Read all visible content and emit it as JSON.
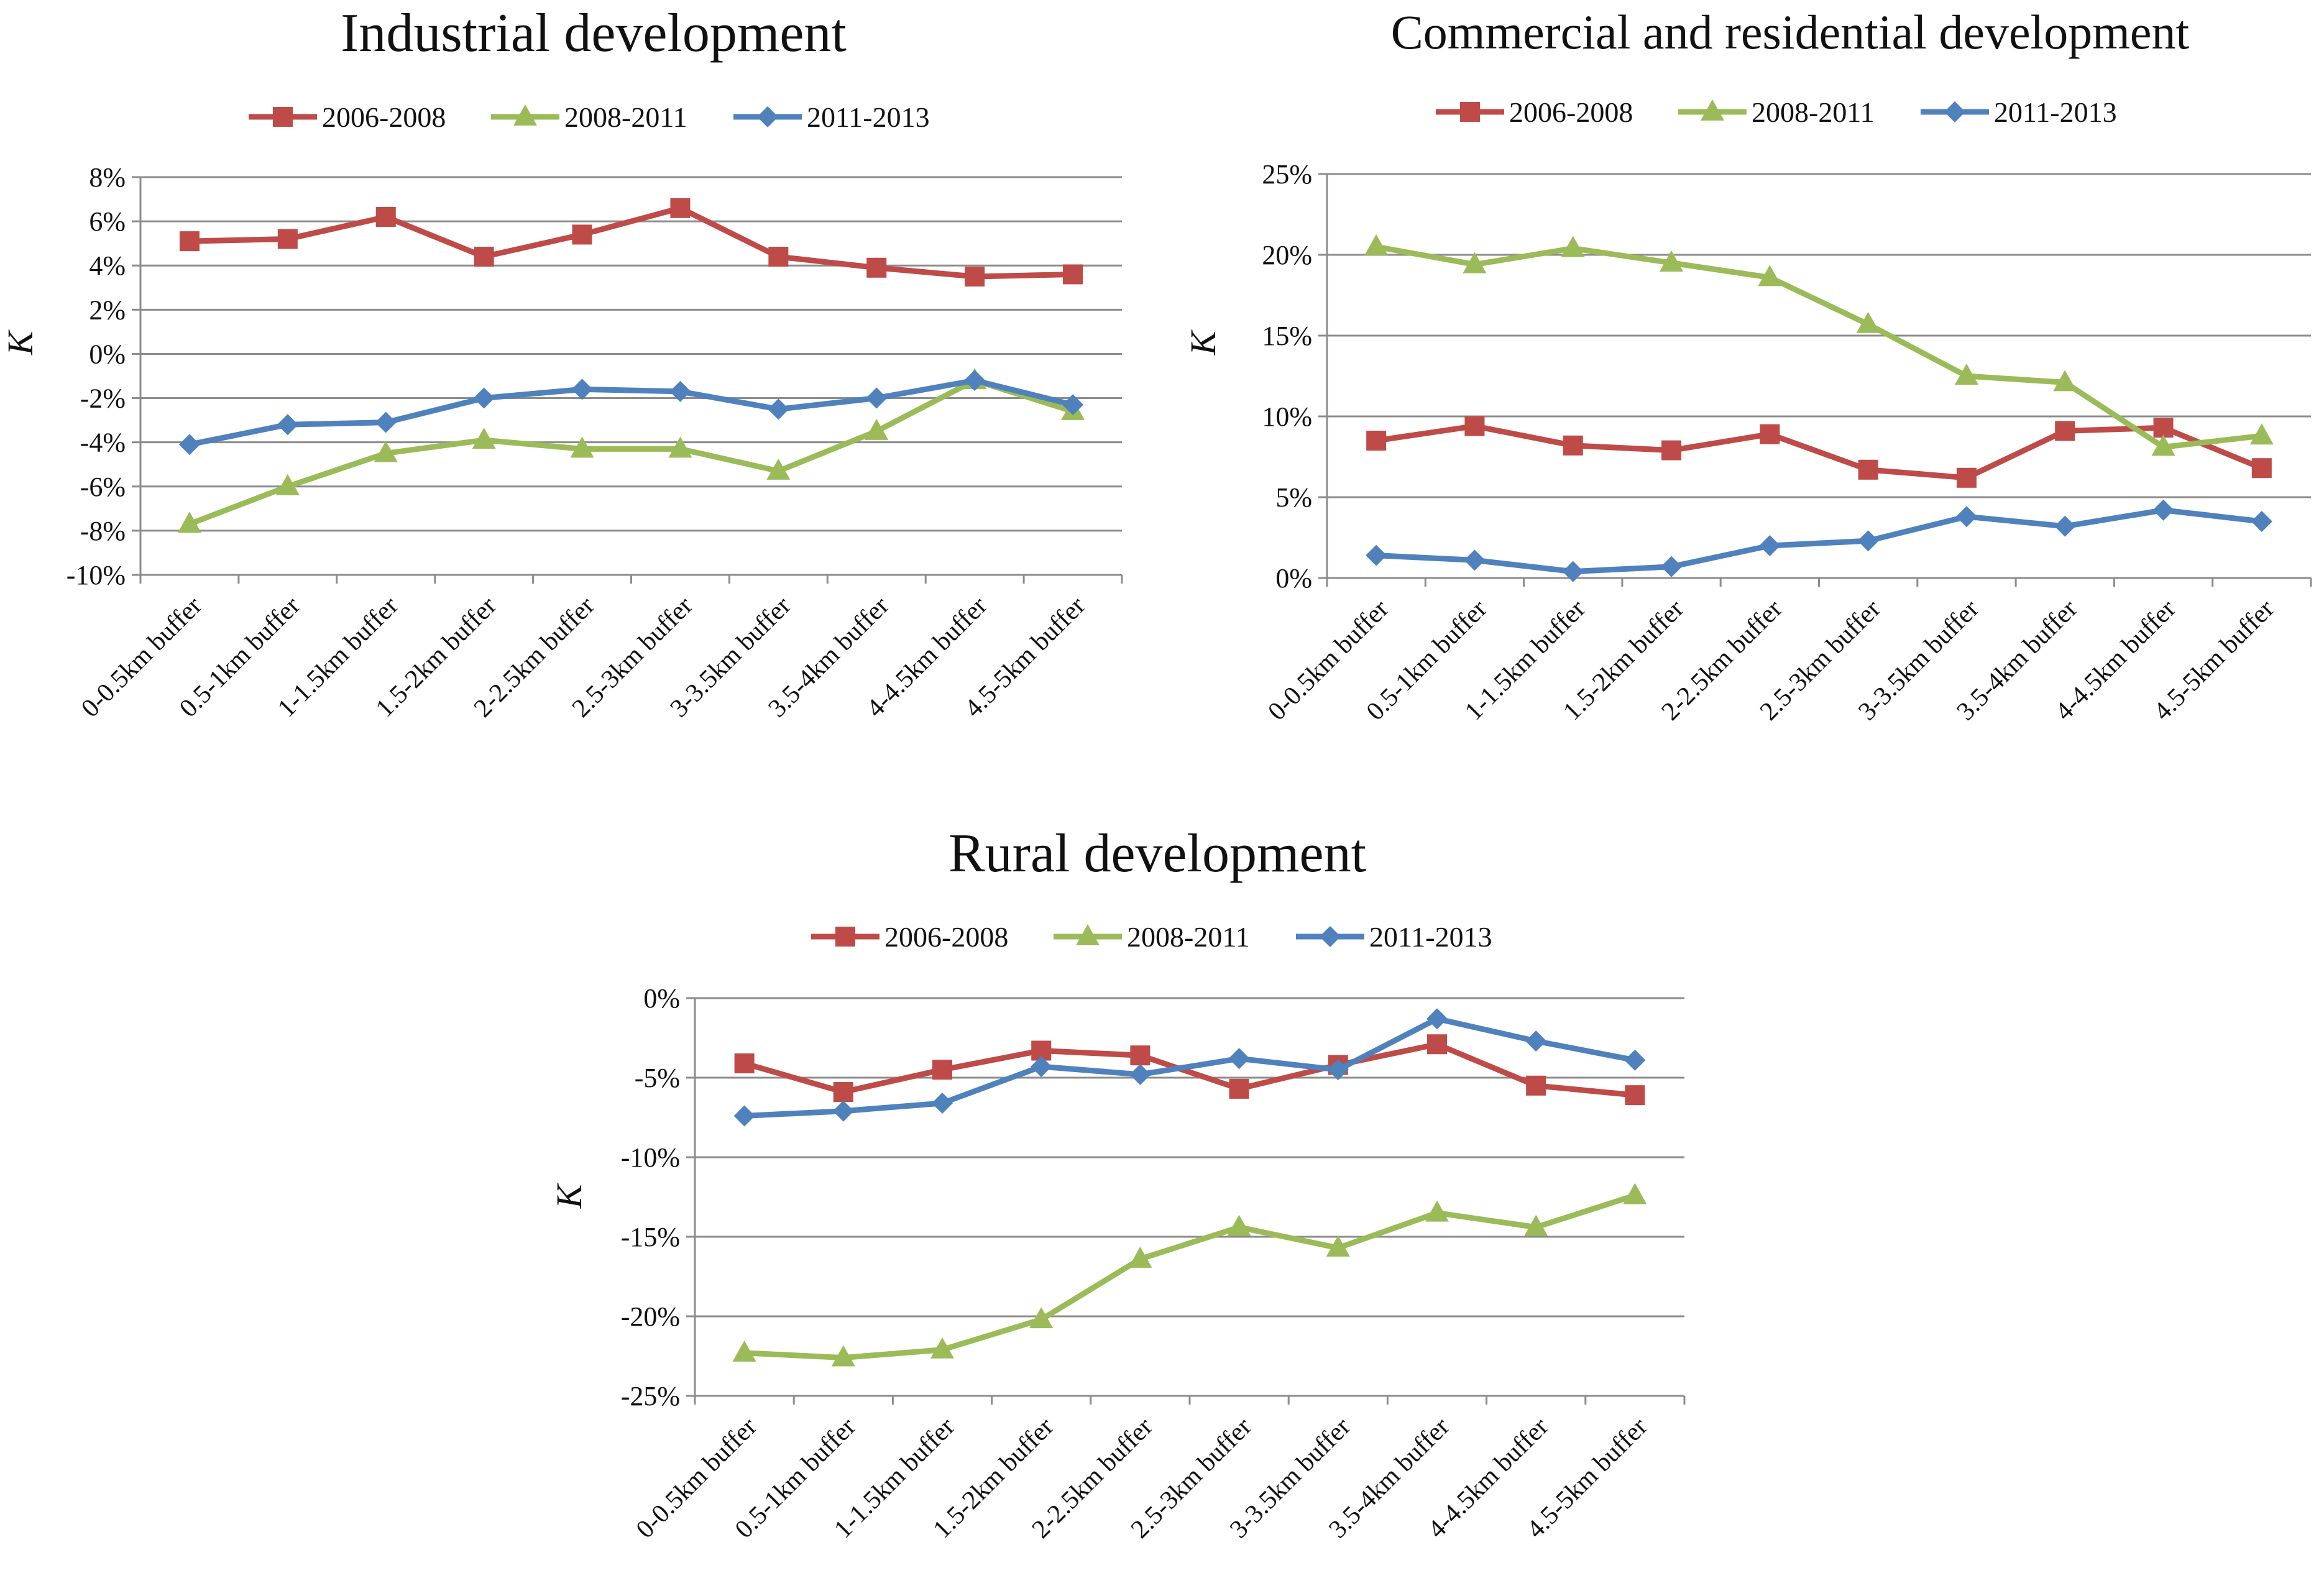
{
  "colors": {
    "s2006": "#BE4B48",
    "s2008": "#9BBB59",
    "s2011": "#4F81BD",
    "grid": "#8C8C8C",
    "axis": "#8C8C8C",
    "text": "#111111"
  },
  "chart_data": [
    {
      "id": "industrial",
      "type": "line",
      "title": "Industrial development",
      "xlabel": "",
      "ylabel": "K",
      "ylim": [
        -10,
        8
      ],
      "ystep": 2,
      "y_ticks": [
        "8%",
        "6%",
        "4%",
        "2%",
        "0%",
        "-2%",
        "-4%",
        "-6%",
        "-8%",
        "-10%"
      ],
      "grid": true,
      "legend": "top",
      "categories": [
        "0-0.5km buffer",
        "0.5-1km buffer",
        "1-1.5km buffer",
        "1.5-2km buffer",
        "2-2.5km buffer",
        "2.5-3km buffer",
        "3-3.5km buffer",
        "3.5-4km buffer",
        "4-4.5km buffer",
        "4.5-5km buffer"
      ],
      "series": [
        {
          "name": "2006-2008",
          "marker": "square",
          "color_key": "s2006",
          "values": [
            5.1,
            5.2,
            6.2,
            4.4,
            5.4,
            6.6,
            4.4,
            3.9,
            3.5,
            3.6
          ]
        },
        {
          "name": "2008-2011",
          "marker": "triangle",
          "color_key": "s2008",
          "values": [
            -7.7,
            -6.0,
            -4.5,
            -3.9,
            -4.3,
            -4.3,
            -5.3,
            -3.5,
            -1.2,
            -2.6
          ]
        },
        {
          "name": "2011-2013",
          "marker": "diamond",
          "color_key": "s2011",
          "values": [
            -4.1,
            -3.2,
            -3.1,
            -2.0,
            -1.6,
            -1.7,
            -2.5,
            -2.0,
            -1.2,
            -2.3
          ]
        }
      ]
    },
    {
      "id": "commercial",
      "type": "line",
      "title": "Commercial and residential development",
      "xlabel": "",
      "ylabel": "K",
      "ylim": [
        0,
        25
      ],
      "ystep": 5,
      "y_ticks": [
        "25%",
        "20%",
        "15%",
        "10%",
        "5%",
        "0%"
      ],
      "grid": true,
      "legend": "top",
      "categories": [
        "0-0.5km buffer",
        "0.5-1km buffer",
        "1-1.5km buffer",
        "1.5-2km buffer",
        "2-2.5km buffer",
        "2.5-3km buffer",
        "3-3.5km buffer",
        "3.5-4km buffer",
        "4-4.5km buffer",
        "4.5-5km buffer"
      ],
      "series": [
        {
          "name": "2006-2008",
          "marker": "square",
          "color_key": "s2006",
          "values": [
            8.5,
            9.4,
            8.2,
            7.9,
            8.9,
            6.7,
            6.2,
            9.1,
            9.3,
            6.8
          ]
        },
        {
          "name": "2008-2011",
          "marker": "triangle",
          "color_key": "s2008",
          "values": [
            20.5,
            19.4,
            20.4,
            19.5,
            18.6,
            15.7,
            12.5,
            12.1,
            8.1,
            8.8
          ]
        },
        {
          "name": "2011-2013",
          "marker": "diamond",
          "color_key": "s2011",
          "values": [
            1.4,
            1.1,
            0.4,
            0.7,
            2.0,
            2.3,
            3.8,
            3.2,
            4.2,
            3.5
          ]
        }
      ]
    },
    {
      "id": "rural",
      "type": "line",
      "title": "Rural development",
      "xlabel": "",
      "ylabel": "K",
      "ylim": [
        -25,
        0
      ],
      "ystep": 5,
      "y_ticks": [
        "0%",
        "-5%",
        "-10%",
        "-15%",
        "-20%",
        "-25%"
      ],
      "grid": true,
      "legend": "top",
      "categories": [
        "0-0.5km buffer",
        "0.5-1km buffer",
        "1-1.5km buffer",
        "1.5-2km buffer",
        "2-2.5km buffer",
        "2.5-3km buffer",
        "3-3.5km buffer",
        "3.5-4km buffer",
        "4-4.5km buffer",
        "4.5-5km buffer"
      ],
      "series": [
        {
          "name": "2006-2008",
          "marker": "square",
          "color_key": "s2006",
          "values": [
            -4.1,
            -5.9,
            -4.5,
            -3.3,
            -3.6,
            -5.7,
            -4.2,
            -2.9,
            -5.5,
            -6.1
          ]
        },
        {
          "name": "2008-2011",
          "marker": "triangle",
          "color_key": "s2008",
          "values": [
            -22.3,
            -22.6,
            -22.1,
            -20.2,
            -16.4,
            -14.4,
            -15.7,
            -13.5,
            -14.4,
            -12.4
          ]
        },
        {
          "name": "2011-2013",
          "marker": "diamond",
          "color_key": "s2011",
          "values": [
            -7.4,
            -7.1,
            -6.6,
            -4.3,
            -4.8,
            -3.8,
            -4.5,
            -1.3,
            -2.7,
            -3.9
          ]
        }
      ]
    }
  ]
}
